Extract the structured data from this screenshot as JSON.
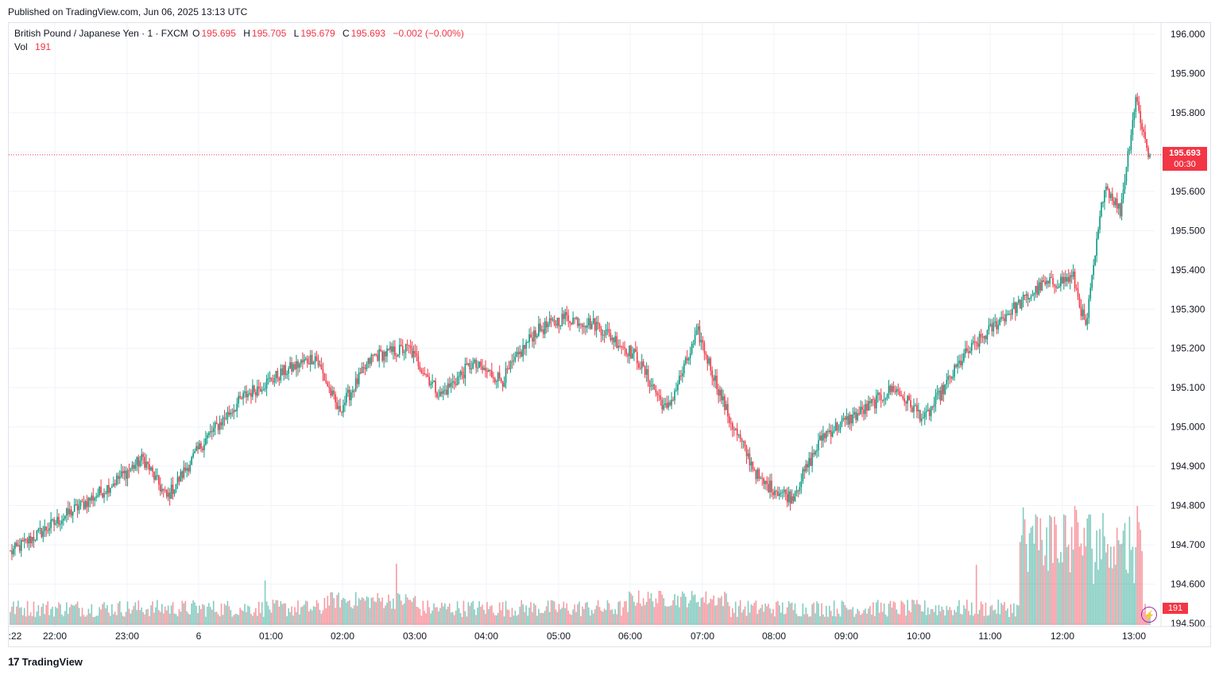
{
  "published": "Published on TradingView.com, Jun 06, 2025 13:13 UTC",
  "legend": {
    "symbol": "British Pound / Japanese Yen · 1 · FXCM",
    "o_label": "O",
    "o_value": "195.695",
    "h_label": "H",
    "h_value": "195.705",
    "l_label": "L",
    "l_value": "195.679",
    "c_label": "C",
    "c_value": "195.693",
    "change": "−0.002 (−0.00%)",
    "vol_label": "Vol",
    "vol_value": "191"
  },
  "price_tag": {
    "price": "195.693",
    "countdown": "00:30"
  },
  "vol_tag": "191",
  "footer": {
    "logo": "17",
    "brand": "TradingView"
  },
  "colors": {
    "up": "#089981",
    "down": "#f23645",
    "grid": "#f0f3fa",
    "axis_text": "#131722"
  },
  "chart_data": {
    "type": "candlestick",
    "title": "British Pound / Japanese Yen · 1 · FXCM",
    "y_ticks": [
      "196.000",
      "195.900",
      "195.800",
      "195.700",
      "195.600",
      "195.500",
      "195.400",
      "195.300",
      "195.200",
      "195.100",
      "195.000",
      "194.900",
      "194.800",
      "194.700",
      "194.600",
      "194.500"
    ],
    "ylim": [
      194.5,
      196.0
    ],
    "x_ticks": [
      ":22",
      "22:00",
      "23:00",
      "6",
      "01:00",
      "02:00",
      "03:00",
      "04:00",
      "05:00",
      "06:00",
      "07:00",
      "08:00",
      "09:00",
      "10:00",
      "11:00",
      "12:00",
      "13:00"
    ],
    "last_price": 195.693,
    "series_anchors": [
      {
        "t": 0,
        "close": 194.68
      },
      {
        "t": 30,
        "close": 194.76
      },
      {
        "t": 60,
        "close": 194.84
      },
      {
        "t": 85,
        "close": 194.92
      },
      {
        "t": 100,
        "close": 194.82
      },
      {
        "t": 125,
        "close": 194.97
      },
      {
        "t": 150,
        "close": 195.08
      },
      {
        "t": 175,
        "close": 195.14
      },
      {
        "t": 195,
        "close": 195.18
      },
      {
        "t": 210,
        "close": 195.04
      },
      {
        "t": 232,
        "close": 195.18
      },
      {
        "t": 255,
        "close": 195.2
      },
      {
        "t": 275,
        "close": 195.08
      },
      {
        "t": 295,
        "close": 195.16
      },
      {
        "t": 315,
        "close": 195.12
      },
      {
        "t": 335,
        "close": 195.24
      },
      {
        "t": 355,
        "close": 195.28
      },
      {
        "t": 375,
        "close": 195.26
      },
      {
        "t": 400,
        "close": 195.18
      },
      {
        "t": 420,
        "close": 195.04
      },
      {
        "t": 440,
        "close": 195.24
      },
      {
        "t": 460,
        "close": 195.02
      },
      {
        "t": 480,
        "close": 194.86
      },
      {
        "t": 500,
        "close": 194.82
      },
      {
        "t": 520,
        "close": 194.98
      },
      {
        "t": 545,
        "close": 195.04
      },
      {
        "t": 565,
        "close": 195.1
      },
      {
        "t": 585,
        "close": 195.02
      },
      {
        "t": 610,
        "close": 195.18
      },
      {
        "t": 635,
        "close": 195.28
      },
      {
        "t": 660,
        "close": 195.36
      },
      {
        "t": 680,
        "close": 195.38
      },
      {
        "t": 688,
        "close": 195.25
      },
      {
        "t": 700,
        "close": 195.62
      },
      {
        "t": 710,
        "close": 195.55
      },
      {
        "t": 720,
        "close": 195.84
      },
      {
        "t": 728,
        "close": 195.693
      }
    ],
    "volume": {
      "last": 191,
      "peak_time": 685
    }
  }
}
